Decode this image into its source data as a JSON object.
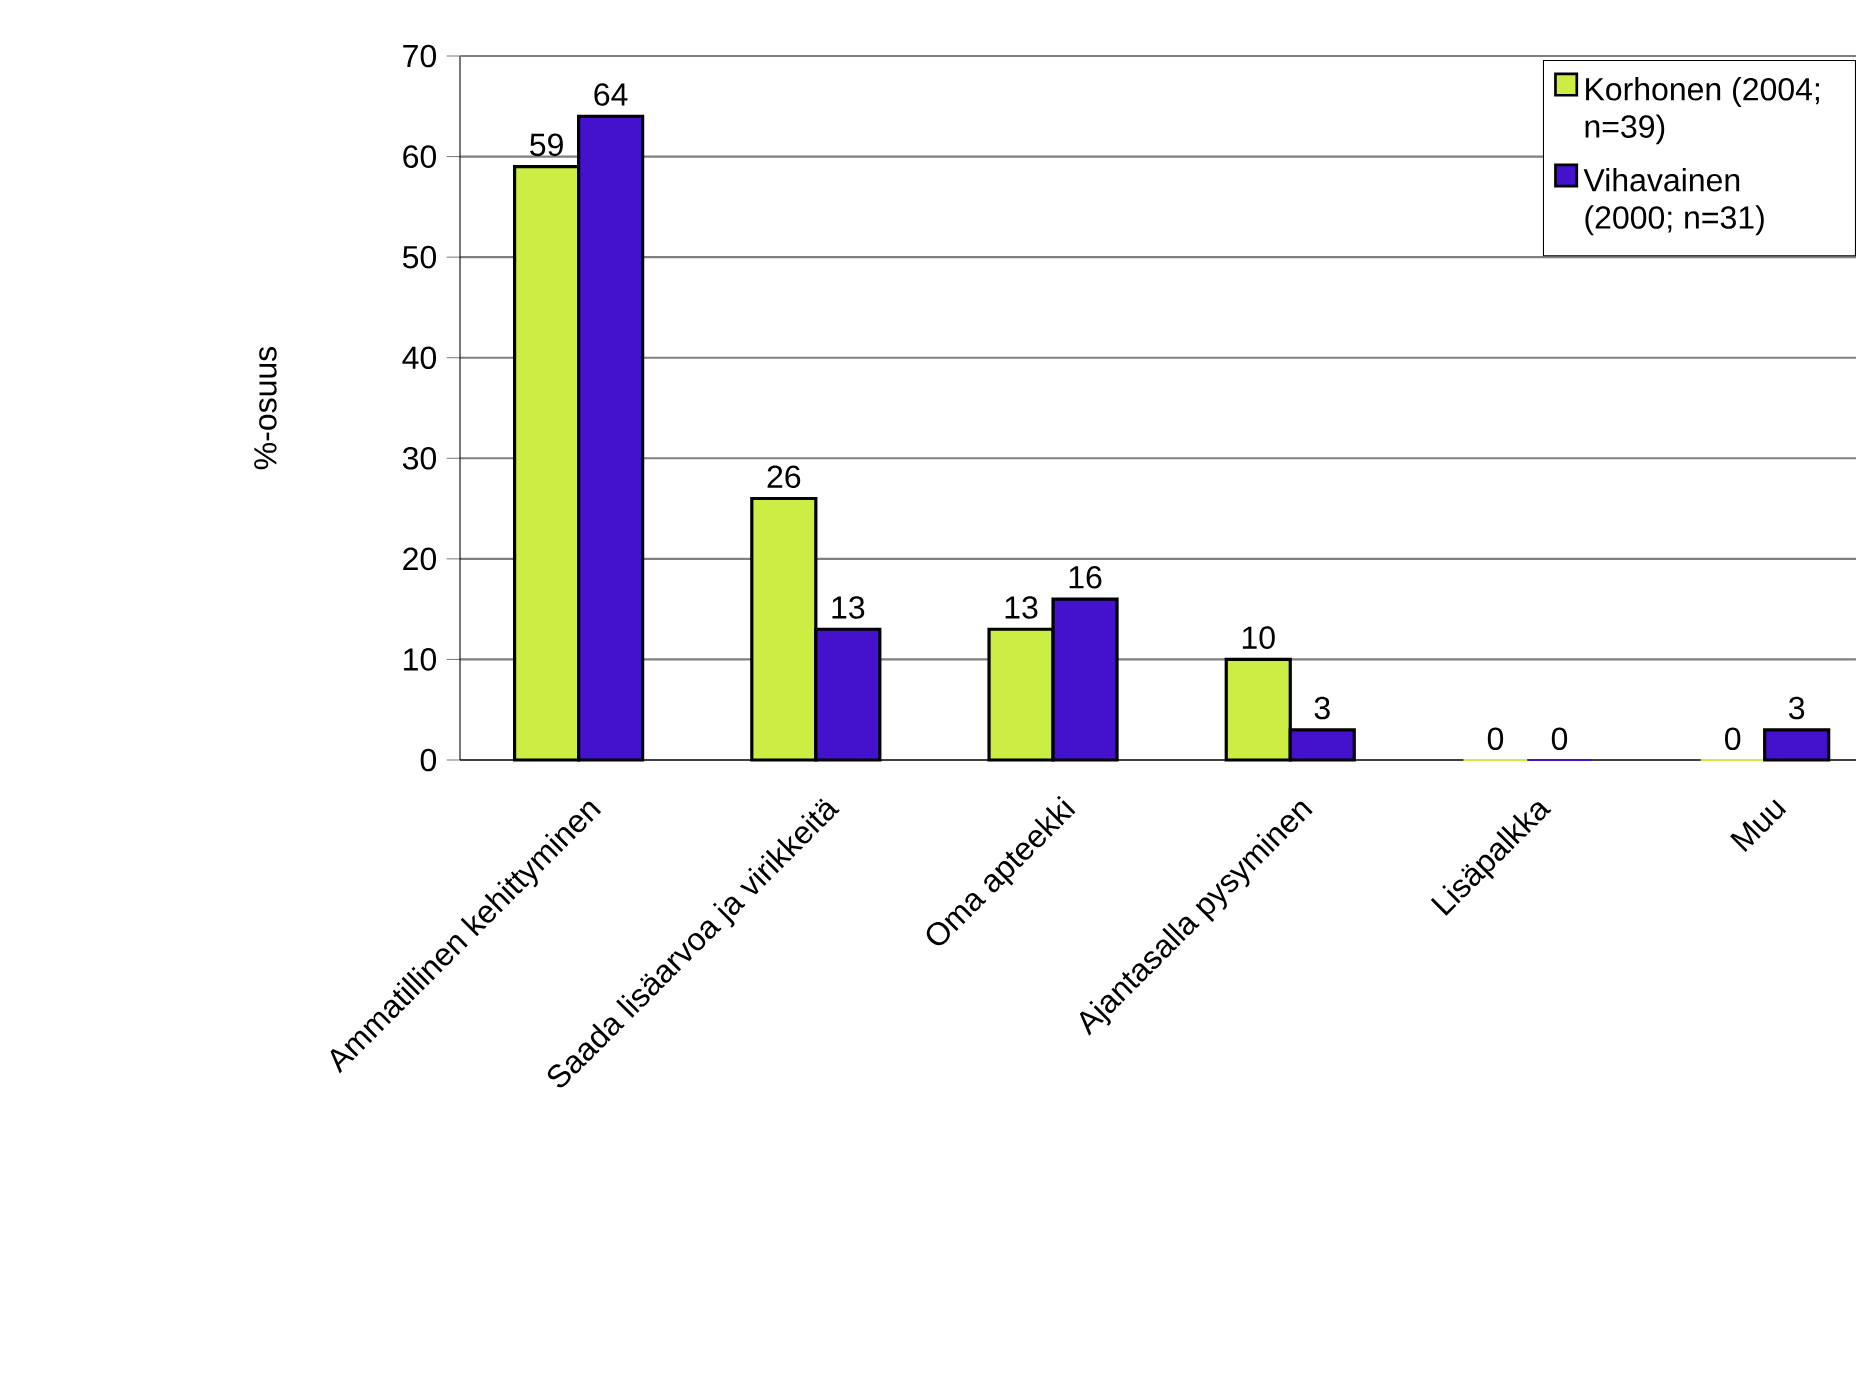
{
  "chart_data": {
    "type": "bar",
    "ylabel": "%-osuus",
    "categories": [
      "Ammatillinen kehittyminen",
      "Saada lisäarvoa ja virikkeitä",
      "Oma apteekki",
      "Ajantasalla pysyminen",
      "Lisäpalkka",
      "Muu"
    ],
    "series": [
      {
        "name": "Korhonen (2004; n=39)",
        "color": "#ccee44",
        "values": [
          59,
          26,
          13,
          10,
          0,
          0
        ]
      },
      {
        "name": "Vihavainen (2000; n=31)",
        "color": "#4411cc",
        "values": [
          64,
          13,
          16,
          3,
          0,
          3
        ]
      }
    ],
    "ylim": [
      0,
      70
    ],
    "yticks": [
      0,
      10,
      20,
      30,
      40,
      50,
      60,
      70
    ],
    "grid": "y",
    "legend": "top right",
    "data_labels": true
  }
}
